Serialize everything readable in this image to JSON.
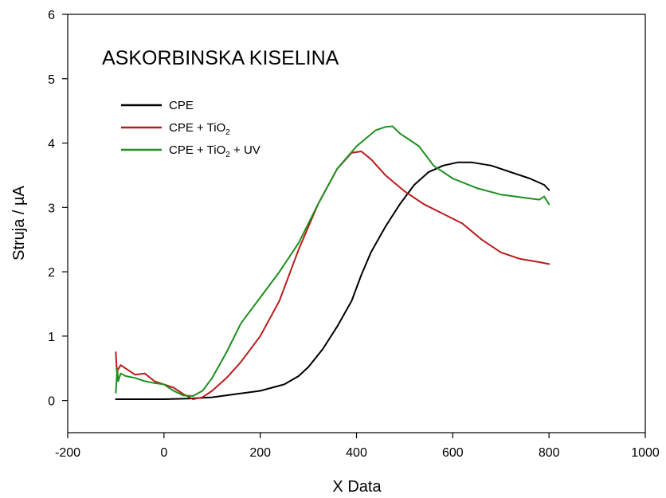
{
  "chart_data": {
    "type": "line",
    "title": "ASKORBINSKA KISELINA",
    "xlabel": "X Data",
    "ylabel": "Struja / µA",
    "xlim": [
      -200,
      1000
    ],
    "ylim": [
      -0.5,
      6
    ],
    "xticks": [
      -200,
      0,
      200,
      400,
      600,
      800,
      1000
    ],
    "yticks": [
      0,
      1,
      2,
      3,
      4,
      5,
      6
    ],
    "legend_position": "upper-left",
    "grid": false,
    "series": [
      {
        "name": "CPE",
        "legend_label": {
          "base": "CPE",
          "sub": "",
          "suffix": ""
        },
        "color": "#000000",
        "x": [
          -100,
          -50,
          0,
          50,
          100,
          150,
          200,
          250,
          280,
          300,
          330,
          360,
          390,
          410,
          430,
          460,
          490,
          520,
          550,
          580,
          610,
          640,
          680,
          720,
          760,
          790,
          800
        ],
        "y": [
          0.02,
          0.02,
          0.02,
          0.03,
          0.05,
          0.1,
          0.15,
          0.25,
          0.38,
          0.52,
          0.8,
          1.15,
          1.55,
          1.95,
          2.3,
          2.7,
          3.05,
          3.35,
          3.55,
          3.65,
          3.7,
          3.7,
          3.65,
          3.55,
          3.45,
          3.35,
          3.27
        ]
      },
      {
        "name": "CPE + TiO2",
        "legend_label": {
          "base": "CPE + TiO",
          "sub": "2",
          "suffix": ""
        },
        "color": "#b81c1c",
        "x": [
          -100,
          -98,
          -90,
          -80,
          -60,
          -40,
          -20,
          0,
          20,
          40,
          60,
          80,
          100,
          130,
          160,
          200,
          240,
          280,
          320,
          360,
          390,
          410,
          430,
          460,
          500,
          540,
          580,
          620,
          660,
          700,
          740,
          780,
          800
        ],
        "y": [
          0.75,
          0.45,
          0.55,
          0.5,
          0.4,
          0.42,
          0.3,
          0.25,
          0.2,
          0.1,
          0.02,
          0.05,
          0.15,
          0.35,
          0.6,
          1.0,
          1.55,
          2.35,
          3.05,
          3.6,
          3.85,
          3.87,
          3.75,
          3.5,
          3.25,
          3.05,
          2.9,
          2.75,
          2.5,
          2.3,
          2.2,
          2.15,
          2.12
        ]
      },
      {
        "name": "CPE + TiO2 + UV",
        "legend_label": {
          "base": "CPE + TiO",
          "sub": "2",
          "suffix": " + UV"
        },
        "color": "#1e8f1e",
        "x": [
          -100,
          -97,
          -95,
          -90,
          -80,
          -60,
          -40,
          -20,
          0,
          20,
          40,
          60,
          80,
          100,
          130,
          160,
          200,
          240,
          280,
          320,
          360,
          400,
          440,
          460,
          475,
          490,
          510,
          530,
          560,
          600,
          650,
          700,
          750,
          780,
          790,
          800
        ],
        "y": [
          0.12,
          0.5,
          0.3,
          0.42,
          0.38,
          0.35,
          0.3,
          0.27,
          0.25,
          0.15,
          0.08,
          0.07,
          0.15,
          0.35,
          0.75,
          1.2,
          1.6,
          2.0,
          2.45,
          3.05,
          3.6,
          3.95,
          4.2,
          4.25,
          4.26,
          4.15,
          4.05,
          3.95,
          3.65,
          3.45,
          3.3,
          3.2,
          3.15,
          3.12,
          3.17,
          3.05
        ]
      }
    ]
  }
}
